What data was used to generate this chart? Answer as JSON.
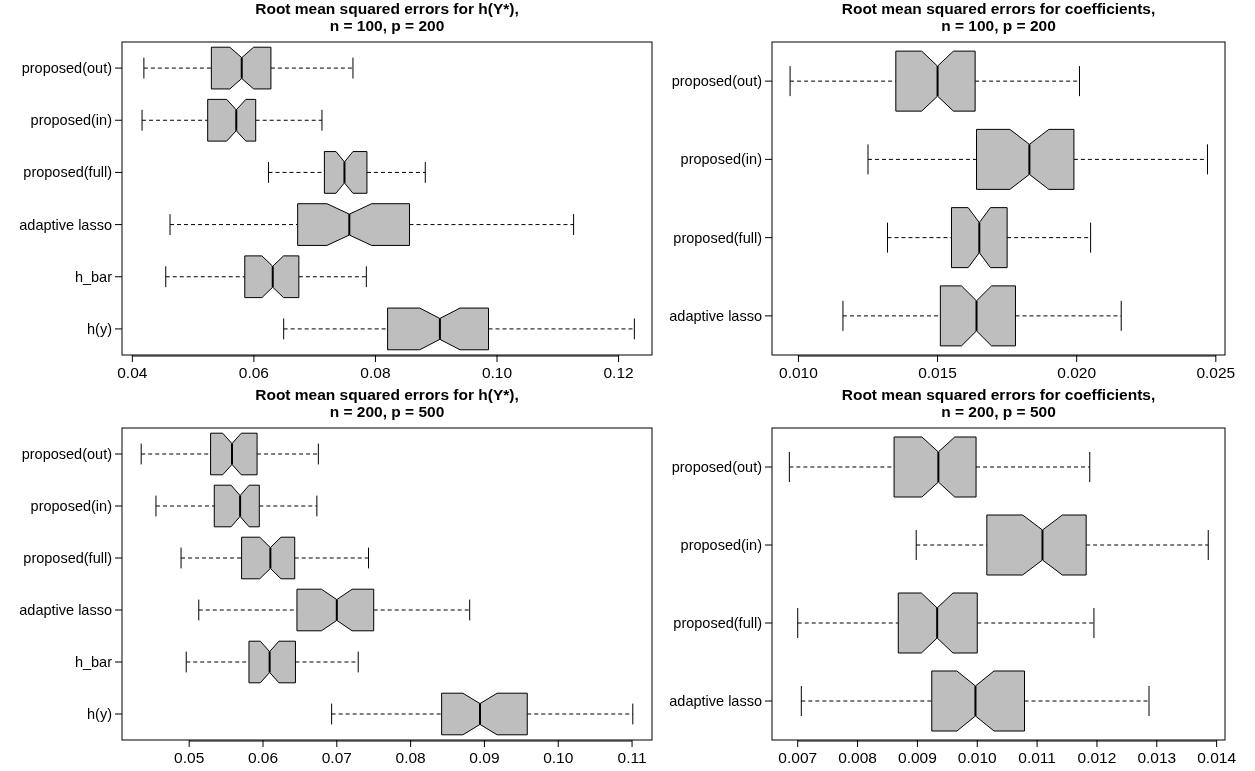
{
  "chart_data": [
    {
      "type": "box",
      "orientation": "horizontal",
      "title": "Root mean squared errors for h(Y*),\nn = 100, p = 200",
      "categories": [
        "proposed(out)",
        "proposed(in)",
        "proposed(full)",
        "adaptive lasso",
        "h_bar",
        "h(y)"
      ],
      "color": "#bebebe",
      "xlim": [
        0.0383,
        0.1255
      ],
      "xticks": [
        0.04,
        0.06,
        0.08,
        {
          "value": 0.1,
          "label": "0.10"
        },
        0.12
      ],
      "boxes": [
        {
          "low": 0.0419,
          "q1": 0.053,
          "median": 0.058,
          "q3": 0.0628,
          "high": 0.0763
        },
        {
          "low": 0.0416,
          "q1": 0.0524,
          "median": 0.0571,
          "q3": 0.0603,
          "high": 0.0712
        },
        {
          "low": 0.0624,
          "q1": 0.0716,
          "median": 0.0749,
          "q3": 0.0786,
          "high": 0.0882
        },
        {
          "low": 0.0462,
          "q1": 0.0672,
          "median": 0.0757,
          "q3": 0.0856,
          "high": 0.1126
        },
        {
          "low": 0.0455,
          "q1": 0.0585,
          "median": 0.0631,
          "q3": 0.0674,
          "high": 0.0785
        },
        {
          "low": 0.0649,
          "q1": 0.082,
          "median": 0.0906,
          "q3": 0.0986,
          "high": 0.1226
        }
      ]
    },
    {
      "type": "box",
      "orientation": "horizontal",
      "title": "Root mean squared errors for coefficients,\nn = 100, p = 200",
      "categories": [
        "proposed(out)",
        "proposed(in)",
        "proposed(full)",
        "adaptive lasso"
      ],
      "color": "#bebebe",
      "xlim": [
        0.00905,
        0.02533
      ],
      "xticks": [
        {
          "value": 0.01,
          "label": "0.010"
        },
        0.015,
        {
          "value": 0.02,
          "label": "0.020"
        },
        0.025
      ],
      "boxes": [
        {
          "low": 0.0097,
          "q1": 0.0135,
          "median": 0.015,
          "q3": 0.01635,
          "high": 0.0201
        },
        {
          "low": 0.0125,
          "q1": 0.0164,
          "median": 0.0183,
          "q3": 0.0199,
          "high": 0.0247
        },
        {
          "low": 0.0132,
          "q1": 0.0155,
          "median": 0.0165,
          "q3": 0.0175,
          "high": 0.0205
        },
        {
          "low": 0.0116,
          "q1": 0.0151,
          "median": 0.0164,
          "q3": 0.0178,
          "high": 0.0216
        }
      ]
    },
    {
      "type": "box",
      "orientation": "horizontal",
      "title": "Root mean squared errors for h(Y*),\nn = 200, p = 500",
      "categories": [
        "proposed(out)",
        "proposed(in)",
        "proposed(full)",
        "adaptive lasso",
        "h_bar",
        "h(y)"
      ],
      "color": "#bebebe",
      "xlim": [
        0.0409,
        0.1127
      ],
      "xticks": [
        0.05,
        0.06,
        0.07,
        0.08,
        0.09,
        {
          "value": 0.1,
          "label": "0.10"
        },
        0.11
      ],
      "boxes": [
        {
          "low": 0.0435,
          "q1": 0.0529,
          "median": 0.0558,
          "q3": 0.0592,
          "high": 0.0675
        },
        {
          "low": 0.0455,
          "q1": 0.0534,
          "median": 0.0569,
          "q3": 0.0595,
          "high": 0.0673
        },
        {
          "low": 0.0489,
          "q1": 0.0571,
          "median": 0.061,
          "q3": 0.0643,
          "high": 0.0743
        },
        {
          "low": 0.0513,
          "q1": 0.0646,
          "median": 0.07,
          "q3": 0.075,
          "high": 0.088
        },
        {
          "low": 0.0496,
          "q1": 0.0581,
          "median": 0.0609,
          "q3": 0.0644,
          "high": 0.0729
        },
        {
          "low": 0.0693,
          "q1": 0.0842,
          "median": 0.0894,
          "q3": 0.0958,
          "high": 0.1101
        }
      ]
    },
    {
      "type": "box",
      "orientation": "horizontal",
      "title": "Root mean squared errors for coefficients,\nn = 200, p = 500",
      "categories": [
        "proposed(out)",
        "proposed(in)",
        "proposed(full)",
        "adaptive lasso"
      ],
      "color": "#bebebe",
      "xlim": [
        0.00657,
        0.01414
      ],
      "xticks": [
        0.007,
        0.008,
        0.009,
        {
          "value": 0.01,
          "label": "0.010"
        },
        0.011,
        0.012,
        0.013,
        0.014
      ],
      "boxes": [
        {
          "low": 0.00686,
          "q1": 0.00861,
          "median": 0.00935,
          "q3": 0.00998,
          "high": 0.01188
        },
        {
          "low": 0.00898,
          "q1": 0.01016,
          "median": 0.01109,
          "q3": 0.01182,
          "high": 0.01386
        },
        {
          "low": 0.007,
          "q1": 0.00868,
          "median": 0.00933,
          "q3": 0.01,
          "high": 0.01195
        },
        {
          "low": 0.00706,
          "q1": 0.00924,
          "median": 0.00997,
          "q3": 0.01079,
          "high": 0.01287
        }
      ]
    }
  ]
}
